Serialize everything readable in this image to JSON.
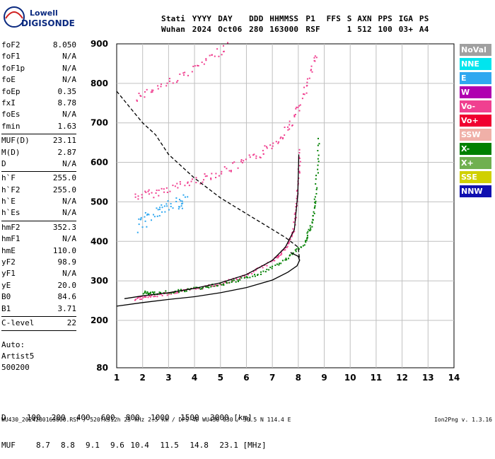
{
  "logo": {
    "brand": "Lowell",
    "product": "DIGISONDE"
  },
  "header": {
    "row1": [
      "Stati",
      "YYYY",
      "DAY",
      "DDD",
      "HHMMSS",
      "P1",
      "FFS",
      "S",
      "AXN",
      "PPS",
      "IGA",
      "PS"
    ],
    "row2": [
      "Wuhan",
      "2024",
      "Oct06",
      "280",
      "163000",
      "RSF",
      "",
      "1",
      "512",
      "100",
      "03+",
      "A4"
    ]
  },
  "parameters": [
    {
      "name": "foF2",
      "value": "8.050"
    },
    {
      "name": "foF1",
      "value": "N/A"
    },
    {
      "name": "foF1p",
      "value": "N/A"
    },
    {
      "name": "foE",
      "value": "N/A"
    },
    {
      "name": "foEp",
      "value": "0.35"
    },
    {
      "name": "fxI",
      "value": "8.78"
    },
    {
      "name": "foEs",
      "value": "N/A"
    },
    {
      "name": "fmin",
      "value": "1.63",
      "sep_after": true
    },
    {
      "name": "MUF(D)",
      "value": "23.11"
    },
    {
      "name": "M(D)",
      "value": "2.87"
    },
    {
      "name": "D",
      "value": "N/A",
      "sep_after": true
    },
    {
      "name": "h`F",
      "value": "255.0"
    },
    {
      "name": "h`F2",
      "value": "255.0"
    },
    {
      "name": "h`E",
      "value": "N/A"
    },
    {
      "name": "h`Es",
      "value": "N/A",
      "sep_after": true
    },
    {
      "name": "hmF2",
      "value": "352.3"
    },
    {
      "name": "hmF1",
      "value": "N/A"
    },
    {
      "name": "hmE",
      "value": "110.0"
    },
    {
      "name": "yF2",
      "value": "98.9"
    },
    {
      "name": "yF1",
      "value": "N/A"
    },
    {
      "name": "yE",
      "value": "20.0"
    },
    {
      "name": "B0",
      "value": "84.6"
    },
    {
      "name": "B1",
      "value": "3.71",
      "sep_after": true
    },
    {
      "name": "C-level",
      "value": "22",
      "sep_after": true
    }
  ],
  "auto": {
    "label": "Auto:",
    "artist": "Artist5",
    "code": "500200"
  },
  "legend": [
    {
      "label": "NoVal",
      "color": "#a0a0a0"
    },
    {
      "label": "NNE",
      "color": "#00e5ee"
    },
    {
      "label": "E",
      "color": "#30a8f0"
    },
    {
      "label": "W",
      "color": "#b000b0"
    },
    {
      "label": "Vo-",
      "color": "#f04090"
    },
    {
      "label": "Vo+",
      "color": "#f00030"
    },
    {
      "label": "SSW",
      "color": "#f0b0a8"
    },
    {
      "label": "X-",
      "color": "#008000"
    },
    {
      "label": "X+",
      "color": "#70b050"
    },
    {
      "label": "SSE",
      "color": "#d0d000"
    },
    {
      "label": "NNW",
      "color": "#1010b0"
    }
  ],
  "muf_table": {
    "d_label": "D",
    "d_values": [
      "100",
      "200",
      "400",
      "600",
      "800",
      "1000",
      "1500",
      "3000"
    ],
    "d_unit": "[km]",
    "muf_label": "MUF",
    "muf_values": [
      "8.7",
      "8.8",
      "9.1",
      "9.6",
      "10.4",
      "11.5",
      "14.8",
      "23.1"
    ],
    "muf_unit": "[MHz]"
  },
  "footer": {
    "text": "WU430_2024280163000.RSF / 520fx512h 25 kHz 2.5 km / DPS-4D WU430 030 / 30.5 N 114.4 E",
    "version": "Ion2Png v. 1.3.16"
  },
  "chart_data": {
    "type": "scatter",
    "xlabel": "",
    "ylabel": "",
    "xlim": [
      1,
      14
    ],
    "ylim": [
      80,
      900
    ],
    "x_ticks": [
      1,
      2,
      3,
      4,
      5,
      6,
      7,
      8,
      9,
      10,
      11,
      12,
      13,
      14
    ],
    "y_ticks": [
      80,
      200,
      300,
      400,
      500,
      600,
      700,
      800,
      900
    ],
    "grid": true,
    "legend_position": "right",
    "o_trace": {
      "color": "#f04090",
      "f": [
        1.7,
        2.2,
        3,
        4,
        5,
        6,
        7,
        7.5,
        7.8,
        7.95,
        8.05
      ],
      "h": [
        256,
        262,
        270,
        281,
        295,
        316,
        352,
        385,
        430,
        520,
        640
      ]
    },
    "x_trace": {
      "color": "#008000",
      "f": [
        2.0,
        2.5,
        3.5,
        4.5,
        5.5,
        6.5,
        7.5,
        8.2,
        8.5,
        8.65,
        8.78
      ],
      "h": [
        272,
        270,
        277,
        287,
        300,
        320,
        355,
        395,
        445,
        520,
        670
      ]
    },
    "o_upper_trace": {
      "color": "#f04090",
      "f": [
        1.7,
        2.5,
        3.5,
        4.5,
        5.5,
        6.5,
        7.2,
        7.8,
        8.3,
        8.7
      ],
      "h": [
        515,
        525,
        545,
        565,
        590,
        620,
        660,
        710,
        790,
        880
      ]
    },
    "o_top_trace": {
      "color": "#f04090",
      "f": [
        1.7,
        2.5,
        3.5,
        4.5,
        5.3
      ],
      "h": [
        765,
        790,
        820,
        860,
        900
      ]
    },
    "e_cluster": {
      "color": "#30a8f0",
      "f": [
        1.8,
        2.2,
        2.6,
        3.0,
        3.4,
        3.7
      ],
      "h": [
        440,
        460,
        480,
        490,
        500,
        505
      ]
    },
    "profile_solid": {
      "color": "#000000",
      "f": [
        1,
        2,
        3,
        4,
        5,
        6,
        7,
        7.6,
        7.95,
        8.05,
        8.0,
        7.7
      ],
      "h": [
        236,
        245,
        253,
        260,
        270,
        283,
        302,
        322,
        338,
        352,
        362,
        372
      ]
    },
    "profile_dashed": {
      "color": "#000000",
      "f": [
        1,
        1.5,
        2,
        2.5,
        3,
        3.5,
        4,
        5,
        6,
        7,
        7.5,
        8,
        8.05
      ],
      "h": [
        780,
        740,
        700,
        670,
        620,
        590,
        560,
        510,
        470,
        430,
        410,
        385,
        352
      ]
    },
    "fit_curve": {
      "color": "#000000",
      "f": [
        1.3,
        2,
        3,
        4,
        5,
        6,
        7,
        7.5,
        7.85,
        7.98,
        8.02
      ],
      "h": [
        255,
        262,
        270,
        281,
        295,
        316,
        352,
        385,
        430,
        520,
        620
      ]
    }
  }
}
